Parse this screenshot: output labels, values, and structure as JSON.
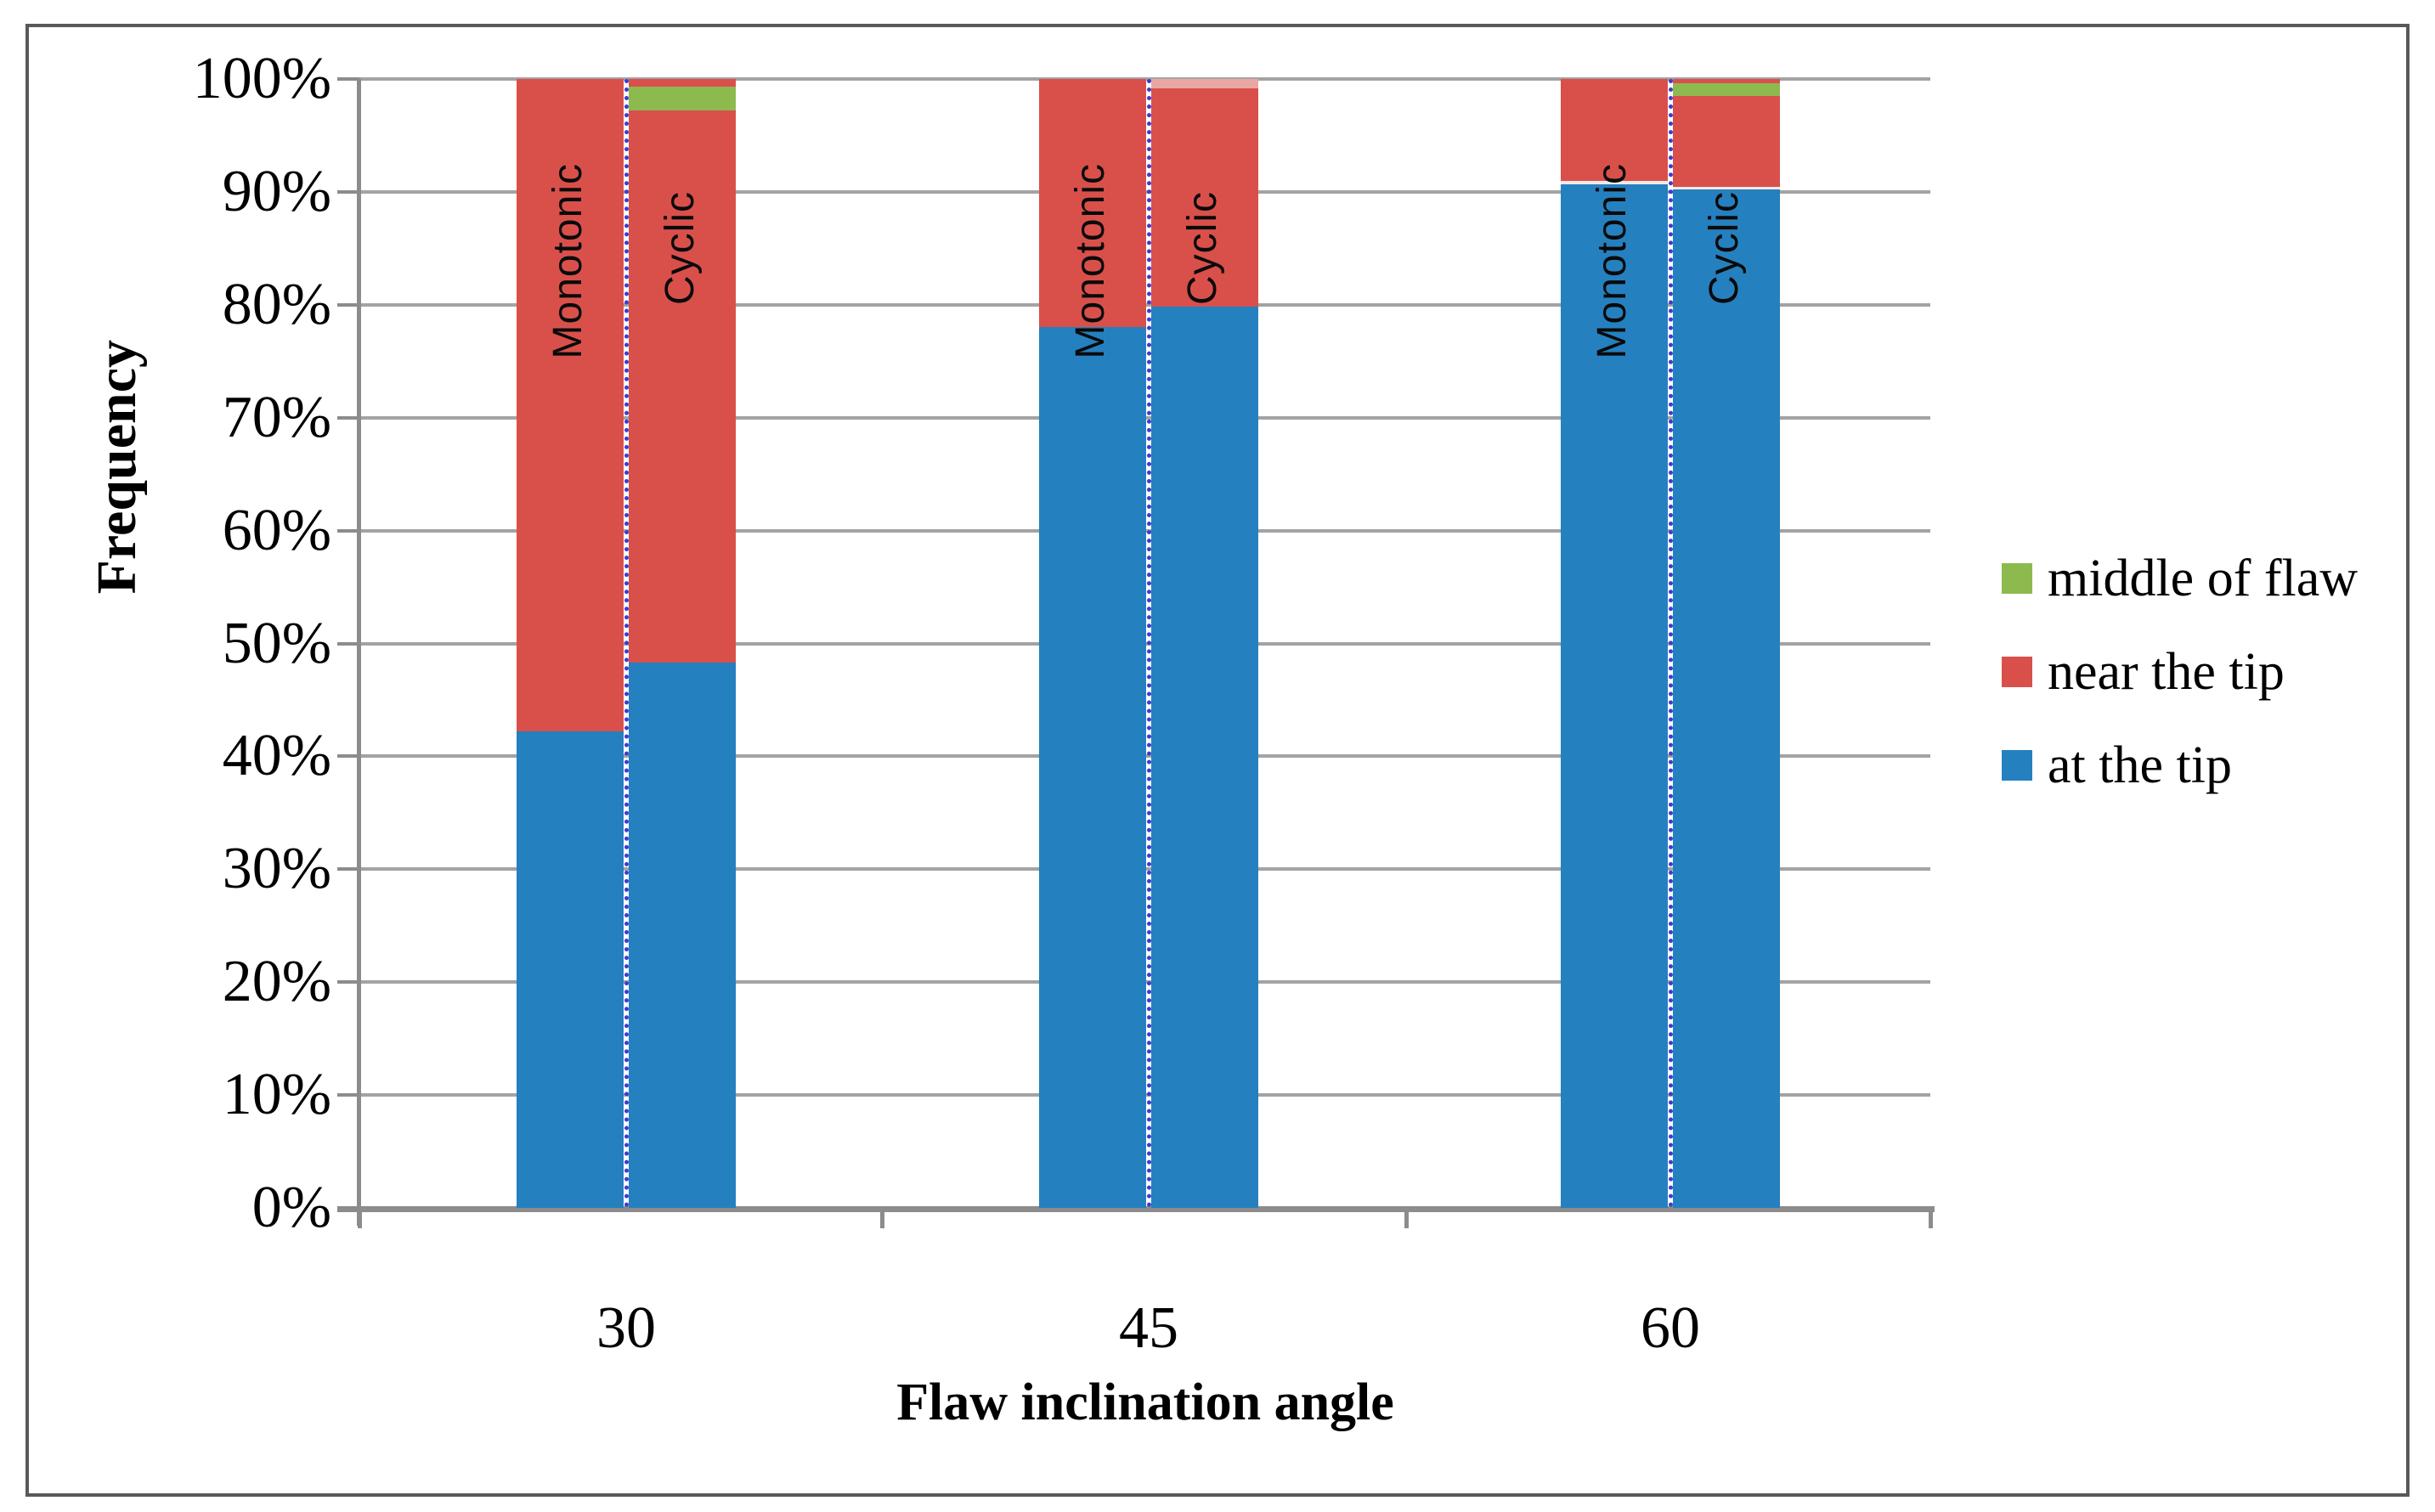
{
  "chart_data": {
    "type": "bar",
    "stacking": "percent",
    "title": "",
    "xlabel": "Flaw inclination angle",
    "ylabel": "Frequency",
    "categories": [
      "30",
      "45",
      "60"
    ],
    "bar_labels": [
      "Monotonic",
      "Cyclic"
    ],
    "ylim": [
      0,
      100
    ],
    "ytick_labels": [
      "0%",
      "10%",
      "20%",
      "30%",
      "40%",
      "50%",
      "60%",
      "70%",
      "80%",
      "90%",
      "100%"
    ],
    "grid": true,
    "legend_position": "right",
    "legend": [
      {
        "label": "middle of flaw",
        "color": "#8CBA4F"
      },
      {
        "label": "near the tip",
        "color": "#D9504B"
      },
      {
        "label": "at the tip",
        "color": "#2580BF"
      }
    ],
    "series": [
      {
        "name": "at the tip",
        "color": "#2580BF",
        "values": {
          "Monotonic": [
            42.2,
            78.0,
            90.8
          ],
          "Cyclic": [
            48.3,
            79.8,
            90.2
          ]
        }
      },
      {
        "name": "near the tip",
        "color": "#D9504B",
        "values": {
          "Monotonic": [
            57.8,
            22.0,
            9.2
          ],
          "Cyclic": [
            49.6,
            20.2,
            8.7
          ]
        }
      },
      {
        "name": "middle of flaw",
        "color": "#8CBA4F",
        "values": {
          "Monotonic": [
            0,
            0,
            0
          ],
          "Cyclic": [
            2.1,
            0,
            1.1
          ]
        }
      }
    ],
    "bars": [
      {
        "category": "30",
        "label": "Monotonic",
        "segments": [
          {
            "series": "at the tip",
            "from": 0,
            "to": 42.2
          },
          {
            "series": "near the tip",
            "from": 42.2,
            "to": 100
          }
        ]
      },
      {
        "category": "30",
        "label": "Cyclic",
        "segments": [
          {
            "series": "at the tip",
            "from": 0,
            "to": 48.3
          },
          {
            "series": "near the tip",
            "from": 48.3,
            "to": 97.2
          },
          {
            "series": "middle of flaw",
            "from": 97.2,
            "to": 99.3
          },
          {
            "series": "near the tip",
            "from": 99.3,
            "to": 100
          }
        ]
      },
      {
        "category": "45",
        "label": "Monotonic",
        "segments": [
          {
            "series": "at the tip",
            "from": 0,
            "to": 78.0
          },
          {
            "series": "near the tip",
            "from": 78.0,
            "to": 100
          }
        ]
      },
      {
        "category": "45",
        "label": "Cyclic",
        "segments": [
          {
            "series": "at the tip",
            "from": 0,
            "to": 79.8
          },
          {
            "series": "near the tip",
            "from": 79.8,
            "to": 99.2
          },
          {
            "series": "near the tip light",
            "from": 99.2,
            "to": 100
          }
        ]
      },
      {
        "category": "60",
        "label": "Monotonic",
        "segments": [
          {
            "series": "at the tip",
            "from": 0,
            "to": 90.7
          },
          {
            "series": "separator",
            "from": 90.7,
            "to": 90.95
          },
          {
            "series": "near the tip",
            "from": 90.95,
            "to": 100
          }
        ]
      },
      {
        "category": "60",
        "label": "Cyclic",
        "segments": [
          {
            "series": "at the tip",
            "from": 0,
            "to": 90.2
          },
          {
            "series": "separator",
            "from": 90.2,
            "to": 90.45
          },
          {
            "series": "near the tip",
            "from": 90.45,
            "to": 98.5
          },
          {
            "series": "middle of flaw",
            "from": 98.5,
            "to": 99.6
          },
          {
            "series": "near the tip",
            "from": 99.6,
            "to": 100
          }
        ]
      }
    ],
    "segment_colors": {
      "at the tip": "#2580BF",
      "near the tip": "#D9504B",
      "middle of flaw": "#8CBA4F",
      "near the tip light": "#E9A7A3",
      "separator": "#F2E9E7"
    },
    "divider_line_color": "#3C3CD0",
    "axis_color": "#8C8C8C",
    "gridline_color": "#A3A3A3"
  }
}
